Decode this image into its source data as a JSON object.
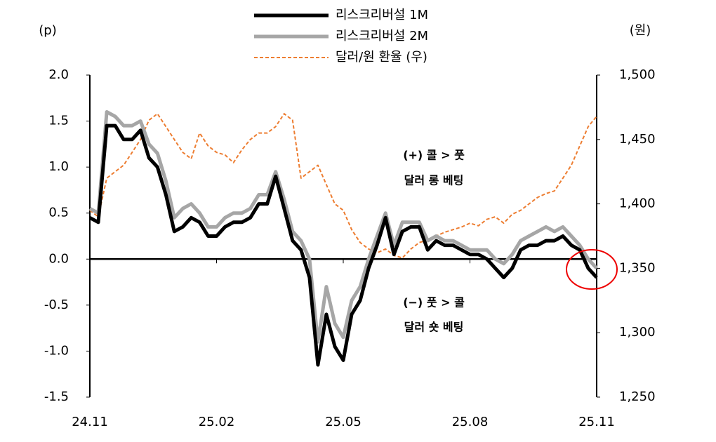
{
  "chart_data": {
    "type": "line",
    "y_label": "(p)",
    "y2_label": "(원)",
    "categories": [
      "24.11",
      null,
      null,
      null,
      null,
      null,
      null,
      null,
      null,
      null,
      null,
      null,
      null,
      null,
      null,
      "25.02",
      null,
      null,
      null,
      null,
      null,
      null,
      null,
      null,
      null,
      null,
      null,
      null,
      null,
      null,
      "25.05",
      null,
      null,
      null,
      null,
      null,
      null,
      null,
      null,
      null,
      null,
      null,
      null,
      null,
      null,
      "25.08",
      null,
      null,
      null,
      null,
      null,
      null,
      null,
      null,
      null,
      null,
      null,
      null,
      null,
      null,
      "25.11"
    ],
    "series": [
      {
        "name": "리스크리버설 1M",
        "color": "#000000",
        "values": [
          0.45,
          0.4,
          1.45,
          1.45,
          1.3,
          1.3,
          1.4,
          1.1,
          1.0,
          0.7,
          0.3,
          0.35,
          0.45,
          0.4,
          0.25,
          0.25,
          0.35,
          0.4,
          0.4,
          0.45,
          0.6,
          0.6,
          0.9,
          0.55,
          0.2,
          0.1,
          -0.2,
          -1.15,
          -0.6,
          -0.95,
          -1.1,
          -0.6,
          -0.45,
          -0.1,
          0.15,
          0.45,
          0.05,
          0.3,
          0.35,
          0.35,
          0.1,
          0.2,
          0.15,
          0.15,
          0.1,
          0.05,
          0.05,
          0.0,
          -0.1,
          -0.2,
          -0.1,
          0.1,
          0.15,
          0.15,
          0.2,
          0.2,
          0.25,
          0.15,
          0.1,
          -0.1,
          -0.2
        ]
      },
      {
        "name": "리스크리버설 2M",
        "color": "#a6a6a6",
        "values": [
          0.55,
          0.5,
          1.6,
          1.55,
          1.45,
          1.45,
          1.5,
          1.25,
          1.15,
          0.85,
          0.45,
          0.55,
          0.6,
          0.5,
          0.35,
          0.35,
          0.45,
          0.5,
          0.5,
          0.55,
          0.7,
          0.7,
          0.95,
          0.65,
          0.3,
          0.2,
          0.0,
          -0.9,
          -0.3,
          -0.7,
          -0.85,
          -0.45,
          -0.3,
          0.0,
          0.25,
          0.5,
          0.15,
          0.4,
          0.4,
          0.4,
          0.2,
          0.25,
          0.2,
          0.2,
          0.15,
          0.1,
          0.1,
          0.1,
          0.0,
          -0.05,
          0.05,
          0.2,
          0.25,
          0.3,
          0.35,
          0.3,
          0.35,
          0.25,
          0.15,
          0.0,
          -0.1
        ]
      },
      {
        "name": "달러/원 환율 (우)",
        "color": "#ed7d31",
        "dashed": true,
        "axis": "y2",
        "values": [
          1395,
          1390,
          1420,
          1425,
          1430,
          1440,
          1450,
          1465,
          1470,
          1460,
          1450,
          1440,
          1435,
          1455,
          1445,
          1440,
          1438,
          1432,
          1442,
          1450,
          1455,
          1455,
          1460,
          1470,
          1465,
          1420,
          1425,
          1430,
          1415,
          1400,
          1395,
          1380,
          1370,
          1365,
          1362,
          1365,
          1360,
          1358,
          1365,
          1370,
          1372,
          1375,
          1378,
          1380,
          1382,
          1385,
          1383,
          1388,
          1390,
          1385,
          1392,
          1395,
          1400,
          1405,
          1408,
          1410,
          1420,
          1430,
          1445,
          1460,
          1468
        ]
      }
    ],
    "ylim": [
      -1.5,
      2.0
    ],
    "yticks": [
      {
        "value": 2,
        "label": "2.0"
      },
      1.5,
      {
        "value": 1,
        "label": "1.0"
      },
      0.5,
      {
        "value": 0,
        "label": "0.0"
      },
      -0.5,
      {
        "value": -1,
        "label": "-1.0"
      },
      -1.5
    ],
    "y2lim": [
      1250,
      1500
    ],
    "y2ticks": [
      {
        "value": 1500,
        "label": "1,500"
      },
      {
        "value": 1450,
        "label": "1,450"
      },
      {
        "value": 1400,
        "label": "1,400"
      },
      {
        "value": 1350,
        "label": "1,350"
      },
      {
        "value": 1300,
        "label": "1,300"
      },
      {
        "value": 1250,
        "label": "1,250"
      }
    ],
    "legend": "top",
    "annotations": [
      "(+) 콜 > 풋",
      "달러 롱 베팅",
      "(−) 풋 > 콜",
      "달러 숏 베팅"
    ]
  }
}
